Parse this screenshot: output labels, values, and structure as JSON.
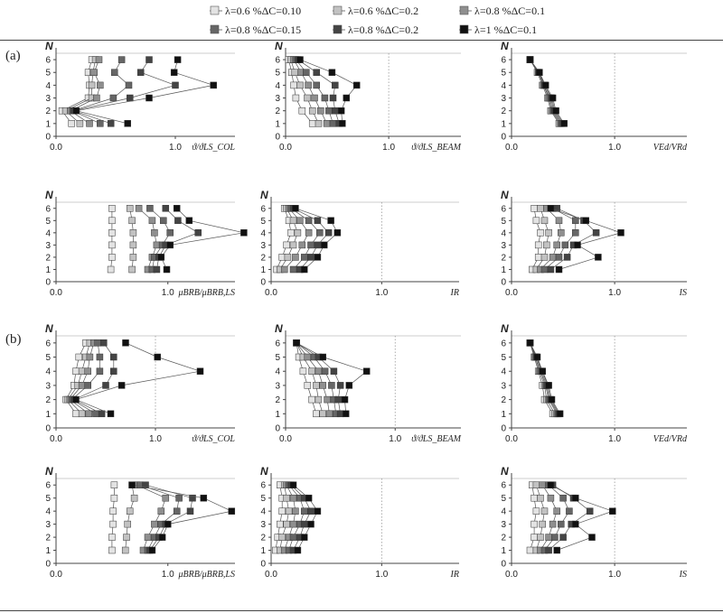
{
  "sections": [
    {
      "label": "(a)"
    },
    {
      "label": "(b)"
    }
  ],
  "legend": [
    {
      "label": "λ=0.6  %ΔC=0.10",
      "color": "#e3e3e3"
    },
    {
      "label": "λ=0.6  %ΔC=0.2",
      "color": "#c2c2c2"
    },
    {
      "label": "λ=0.8  %ΔC=0.1",
      "color": "#8f8f8f"
    },
    {
      "label": "λ=0.8  %ΔC=0.15",
      "color": "#666666"
    },
    {
      "label": "λ=0.8  %ΔC=0.2",
      "color": "#444444"
    },
    {
      "label": "λ=1     %ΔC=0.1",
      "color": "#111111"
    }
  ],
  "chart_data": [
    {
      "type": "line",
      "section": "(a)",
      "y_title": "N",
      "x_title": "ϑ/ϑLS_COL",
      "xlim": [
        0,
        1.5
      ],
      "ylim": [
        0,
        6.5
      ],
      "x_tick_labels": [
        "0.0",
        "1.0"
      ],
      "x_ticks": [
        0,
        1
      ],
      "y_ticks": [
        0,
        1,
        2,
        3,
        4,
        5,
        6
      ],
      "reference_x": null,
      "y": [
        1,
        2,
        3,
        4,
        5,
        6
      ],
      "series": [
        {
          "values": [
            0.13,
            0.05,
            0.27,
            0.28,
            0.27,
            0.3
          ]
        },
        {
          "values": [
            0.2,
            0.08,
            0.3,
            0.3,
            0.31,
            0.33
          ]
        },
        {
          "values": [
            0.28,
            0.12,
            0.34,
            0.37,
            0.32,
            0.36
          ]
        },
        {
          "values": [
            0.37,
            0.14,
            0.48,
            0.61,
            0.49,
            0.55
          ]
        },
        {
          "values": [
            0.46,
            0.15,
            0.62,
            1.0,
            0.71,
            0.78
          ]
        },
        {
          "values": [
            0.6,
            0.17,
            0.78,
            1.32,
            0.99,
            1.02
          ]
        }
      ]
    },
    {
      "type": "line",
      "section": "(a)",
      "y_title": "N",
      "x_title": "ϑ/ϑLS_BEAM",
      "xlim": [
        0,
        1.7
      ],
      "ylim": [
        0,
        6.5
      ],
      "x_tick_labels": [
        "0.0",
        "1.0"
      ],
      "x_ticks": [
        0,
        1
      ],
      "y_ticks": [
        0,
        1,
        2,
        3,
        4,
        5,
        6
      ],
      "reference_x": 1.0,
      "y": [
        1,
        2,
        3,
        4,
        5,
        6
      ],
      "series": [
        {
          "values": [
            0.26,
            0.16,
            0.1,
            0.08,
            0.06,
            0.03
          ]
        },
        {
          "values": [
            0.32,
            0.26,
            0.21,
            0.14,
            0.09,
            0.05
          ]
        },
        {
          "values": [
            0.4,
            0.34,
            0.28,
            0.22,
            0.15,
            0.08
          ]
        },
        {
          "values": [
            0.46,
            0.42,
            0.38,
            0.3,
            0.2,
            0.1
          ]
        },
        {
          "values": [
            0.52,
            0.48,
            0.46,
            0.48,
            0.3,
            0.12
          ]
        },
        {
          "values": [
            0.55,
            0.54,
            0.59,
            0.69,
            0.45,
            0.14
          ]
        }
      ]
    },
    {
      "type": "line",
      "section": "(a)",
      "y_title": "N",
      "x_title": "VEd/VRd",
      "xlim": [
        0,
        1.7
      ],
      "ylim": [
        0,
        6.5
      ],
      "x_tick_labels": [
        "0.0",
        "1.0"
      ],
      "x_ticks": [
        0,
        1
      ],
      "y_ticks": [
        0,
        1,
        2,
        3,
        4,
        5,
        6
      ],
      "reference_x": 1.0,
      "y": [
        1,
        2,
        3,
        4,
        5,
        6
      ],
      "series": [
        {
          "values": [
            0.46,
            0.38,
            0.35,
            0.3,
            0.25,
            0.18
          ]
        },
        {
          "values": [
            0.47,
            0.39,
            0.36,
            0.31,
            0.26,
            0.18
          ]
        },
        {
          "values": [
            0.48,
            0.4,
            0.37,
            0.31,
            0.26,
            0.18
          ]
        },
        {
          "values": [
            0.49,
            0.41,
            0.38,
            0.32,
            0.26,
            0.18
          ]
        },
        {
          "values": [
            0.5,
            0.42,
            0.39,
            0.32,
            0.27,
            0.18
          ]
        },
        {
          "values": [
            0.51,
            0.43,
            0.4,
            0.33,
            0.27,
            0.18
          ]
        }
      ]
    },
    {
      "type": "line",
      "section": "(a)",
      "y_title": "N",
      "x_title": "μBRB/μBRB,LS",
      "xlim": [
        0,
        1.6
      ],
      "ylim": [
        0,
        6.5
      ],
      "x_tick_labels": [
        "0.0",
        "1.0"
      ],
      "x_ticks": [
        0,
        1
      ],
      "y_ticks": [
        0,
        1,
        2,
        3,
        4,
        5,
        6
      ],
      "reference_x": null,
      "y": [
        1,
        2,
        3,
        4,
        5,
        6
      ],
      "series": [
        {
          "values": [
            0.49,
            0.5,
            0.5,
            0.5,
            0.5,
            0.5
          ]
        },
        {
          "values": [
            0.68,
            0.69,
            0.69,
            0.69,
            0.68,
            0.66
          ]
        },
        {
          "values": [
            0.82,
            0.86,
            0.9,
            0.88,
            0.86,
            0.74
          ]
        },
        {
          "values": [
            0.86,
            0.88,
            0.95,
            1.02,
            0.96,
            0.84
          ]
        },
        {
          "values": [
            0.9,
            0.92,
            0.98,
            1.27,
            1.09,
            0.98
          ]
        },
        {
          "values": [
            0.99,
            0.94,
            1.02,
            1.68,
            1.19,
            1.08
          ]
        }
      ]
    },
    {
      "type": "line",
      "section": "(a)",
      "y_title": "N",
      "x_title": "IR",
      "xlim": [
        0,
        1.7
      ],
      "ylim": [
        0,
        6.5
      ],
      "x_tick_labels": [
        "0.0",
        "1.0"
      ],
      "x_ticks": [
        0,
        1
      ],
      "y_ticks": [
        0,
        1,
        2,
        3,
        4,
        5,
        6
      ],
      "reference_x": 1.0,
      "y": [
        1,
        2,
        3,
        4,
        5,
        6
      ],
      "series": [
        {
          "values": [
            0.05,
            0.1,
            0.14,
            0.18,
            0.16,
            0.12
          ]
        },
        {
          "values": [
            0.08,
            0.15,
            0.2,
            0.24,
            0.2,
            0.14
          ]
        },
        {
          "values": [
            0.12,
            0.22,
            0.28,
            0.34,
            0.26,
            0.16
          ]
        },
        {
          "values": [
            0.2,
            0.3,
            0.36,
            0.44,
            0.34,
            0.18
          ]
        },
        {
          "values": [
            0.26,
            0.36,
            0.42,
            0.52,
            0.42,
            0.2
          ]
        },
        {
          "values": [
            0.3,
            0.42,
            0.48,
            0.6,
            0.54,
            0.22
          ]
        }
      ]
    },
    {
      "type": "line",
      "section": "(a)",
      "y_title": "N",
      "x_title": "IS",
      "xlim": [
        0,
        1.7
      ],
      "ylim": [
        0,
        6.5
      ],
      "x_tick_labels": [
        "0.0",
        "1.0"
      ],
      "x_ticks": [
        0,
        1
      ],
      "y_ticks": [
        0,
        1,
        2,
        3,
        4,
        5,
        6
      ],
      "reference_x": 1.0,
      "y": [
        1,
        2,
        3,
        4,
        5,
        6
      ],
      "series": [
        {
          "values": [
            0.2,
            0.26,
            0.26,
            0.28,
            0.24,
            0.22
          ]
        },
        {
          "values": [
            0.24,
            0.32,
            0.34,
            0.36,
            0.32,
            0.28
          ]
        },
        {
          "values": [
            0.28,
            0.4,
            0.44,
            0.48,
            0.46,
            0.34
          ]
        },
        {
          "values": [
            0.32,
            0.46,
            0.52,
            0.62,
            0.62,
            0.4
          ]
        },
        {
          "values": [
            0.38,
            0.54,
            0.6,
            0.82,
            0.7,
            0.44
          ]
        },
        {
          "values": [
            0.46,
            0.84,
            0.64,
            1.06,
            0.72,
            0.38
          ]
        }
      ]
    },
    {
      "type": "line",
      "section": "(b)",
      "y_title": "N",
      "x_title": "ϑ/ϑLS_COL",
      "xlim": [
        0,
        1.8
      ],
      "ylim": [
        0,
        6.5
      ],
      "x_tick_labels": [
        "0.0",
        "1.0"
      ],
      "x_ticks": [
        0,
        1
      ],
      "y_ticks": [
        0,
        1,
        2,
        3,
        4,
        5,
        6
      ],
      "reference_x": 1.0,
      "y": [
        1,
        2,
        3,
        4,
        5,
        6
      ],
      "series": [
        {
          "values": [
            0.2,
            0.1,
            0.18,
            0.2,
            0.23,
            0.3
          ]
        },
        {
          "values": [
            0.26,
            0.12,
            0.22,
            0.26,
            0.3,
            0.34
          ]
        },
        {
          "values": [
            0.33,
            0.14,
            0.26,
            0.32,
            0.34,
            0.38
          ]
        },
        {
          "values": [
            0.4,
            0.16,
            0.32,
            0.44,
            0.44,
            0.42
          ]
        },
        {
          "values": [
            0.46,
            0.18,
            0.5,
            0.58,
            0.58,
            0.48
          ]
        },
        {
          "values": [
            0.55,
            0.2,
            0.66,
            1.45,
            1.02,
            0.7
          ]
        }
      ]
    },
    {
      "type": "line",
      "section": "(b)",
      "y_title": "N",
      "x_title": "ϑ/ϑLS_BEAM",
      "xlim": [
        0,
        1.6
      ],
      "ylim": [
        0,
        6.5
      ],
      "x_tick_labels": [
        "0.0",
        "1.0"
      ],
      "x_ticks": [
        0,
        1
      ],
      "y_ticks": [
        0,
        1,
        2,
        3,
        4,
        5,
        6
      ],
      "reference_x": 1.0,
      "y": [
        1,
        2,
        3,
        4,
        5,
        6
      ],
      "series": [
        {
          "values": [
            0.28,
            0.24,
            0.2,
            0.16,
            0.12,
            0.1
          ]
        },
        {
          "values": [
            0.34,
            0.3,
            0.28,
            0.24,
            0.16,
            0.1
          ]
        },
        {
          "values": [
            0.4,
            0.38,
            0.34,
            0.3,
            0.2,
            0.1
          ]
        },
        {
          "values": [
            0.46,
            0.44,
            0.42,
            0.36,
            0.26,
            0.1
          ]
        },
        {
          "values": [
            0.5,
            0.48,
            0.5,
            0.44,
            0.3,
            0.1
          ]
        },
        {
          "values": [
            0.55,
            0.54,
            0.58,
            0.74,
            0.34,
            0.1
          ]
        }
      ]
    },
    {
      "type": "line",
      "section": "(b)",
      "y_title": "N",
      "x_title": "VEd/VRd",
      "xlim": [
        0,
        1.7
      ],
      "ylim": [
        0,
        6.5
      ],
      "x_tick_labels": [
        "0.0",
        "1.0"
      ],
      "x_ticks": [
        0,
        1
      ],
      "y_ticks": [
        0,
        1,
        2,
        3,
        4,
        5,
        6
      ],
      "reference_x": 1.0,
      "y": [
        1,
        2,
        3,
        4,
        5,
        6
      ],
      "series": [
        {
          "values": [
            0.4,
            0.32,
            0.3,
            0.26,
            0.22,
            0.18
          ]
        },
        {
          "values": [
            0.42,
            0.34,
            0.32,
            0.27,
            0.23,
            0.18
          ]
        },
        {
          "values": [
            0.44,
            0.36,
            0.33,
            0.28,
            0.23,
            0.18
          ]
        },
        {
          "values": [
            0.45,
            0.37,
            0.34,
            0.29,
            0.24,
            0.18
          ]
        },
        {
          "values": [
            0.46,
            0.38,
            0.35,
            0.3,
            0.24,
            0.18
          ]
        },
        {
          "values": [
            0.47,
            0.39,
            0.36,
            0.3,
            0.25,
            0.18
          ]
        }
      ]
    },
    {
      "type": "line",
      "section": "(b)",
      "y_title": "N",
      "x_title": "μBRB/μBRB,LS",
      "xlim": [
        0,
        1.6
      ],
      "ylim": [
        0,
        6.5
      ],
      "x_tick_labels": [
        "0.0",
        "1.0"
      ],
      "x_ticks": [
        0,
        1
      ],
      "y_ticks": [
        0,
        1,
        2,
        3,
        4,
        5,
        6
      ],
      "reference_x": null,
      "y": [
        1,
        2,
        3,
        4,
        5,
        6
      ],
      "series": [
        {
          "values": [
            0.5,
            0.5,
            0.51,
            0.51,
            0.52,
            0.52
          ]
        },
        {
          "values": [
            0.62,
            0.63,
            0.64,
            0.66,
            0.7,
            0.68
          ]
        },
        {
          "values": [
            0.78,
            0.82,
            0.88,
            0.94,
            0.98,
            0.72
          ]
        },
        {
          "values": [
            0.82,
            0.88,
            0.94,
            1.08,
            1.1,
            0.75
          ]
        },
        {
          "values": [
            0.84,
            0.92,
            0.98,
            1.2,
            1.22,
            0.8
          ]
        },
        {
          "values": [
            0.86,
            0.95,
            1.0,
            1.57,
            1.32,
            0.68
          ]
        }
      ]
    },
    {
      "type": "line",
      "section": "(b)",
      "y_title": "N",
      "x_title": "IR",
      "xlim": [
        0,
        1.7
      ],
      "ylim": [
        0,
        6.5
      ],
      "x_tick_labels": [
        "0.0",
        "1.0"
      ],
      "x_ticks": [
        0,
        1
      ],
      "y_ticks": [
        0,
        1,
        2,
        3,
        4,
        5,
        6
      ],
      "reference_x": 1.0,
      "y": [
        1,
        2,
        3,
        4,
        5,
        6
      ],
      "series": [
        {
          "values": [
            0.04,
            0.06,
            0.08,
            0.1,
            0.1,
            0.08
          ]
        },
        {
          "values": [
            0.08,
            0.1,
            0.14,
            0.16,
            0.14,
            0.12
          ]
        },
        {
          "values": [
            0.12,
            0.16,
            0.2,
            0.22,
            0.2,
            0.14
          ]
        },
        {
          "values": [
            0.16,
            0.2,
            0.26,
            0.3,
            0.26,
            0.16
          ]
        },
        {
          "values": [
            0.2,
            0.26,
            0.3,
            0.36,
            0.3,
            0.18
          ]
        },
        {
          "values": [
            0.24,
            0.3,
            0.36,
            0.42,
            0.34,
            0.2
          ]
        }
      ]
    },
    {
      "type": "line",
      "section": "(b)",
      "y_title": "N",
      "x_title": "IS",
      "xlim": [
        0,
        1.7
      ],
      "ylim": [
        0,
        6.5
      ],
      "x_tick_labels": [
        "0.0",
        "1.0"
      ],
      "x_ticks": [
        0,
        1
      ],
      "y_ticks": [
        0,
        1,
        2,
        3,
        4,
        5,
        6
      ],
      "reference_x": 1.0,
      "y": [
        1,
        2,
        3,
        4,
        5,
        6
      ],
      "series": [
        {
          "values": [
            0.18,
            0.22,
            0.22,
            0.24,
            0.22,
            0.2
          ]
        },
        {
          "values": [
            0.24,
            0.28,
            0.3,
            0.32,
            0.28,
            0.24
          ]
        },
        {
          "values": [
            0.28,
            0.36,
            0.4,
            0.44,
            0.38,
            0.3
          ]
        },
        {
          "values": [
            0.32,
            0.42,
            0.48,
            0.56,
            0.5,
            0.36
          ]
        },
        {
          "values": [
            0.36,
            0.5,
            0.58,
            0.76,
            0.6,
            0.4
          ]
        },
        {
          "values": [
            0.44,
            0.78,
            0.62,
            0.98,
            0.62,
            0.38
          ]
        }
      ]
    }
  ]
}
